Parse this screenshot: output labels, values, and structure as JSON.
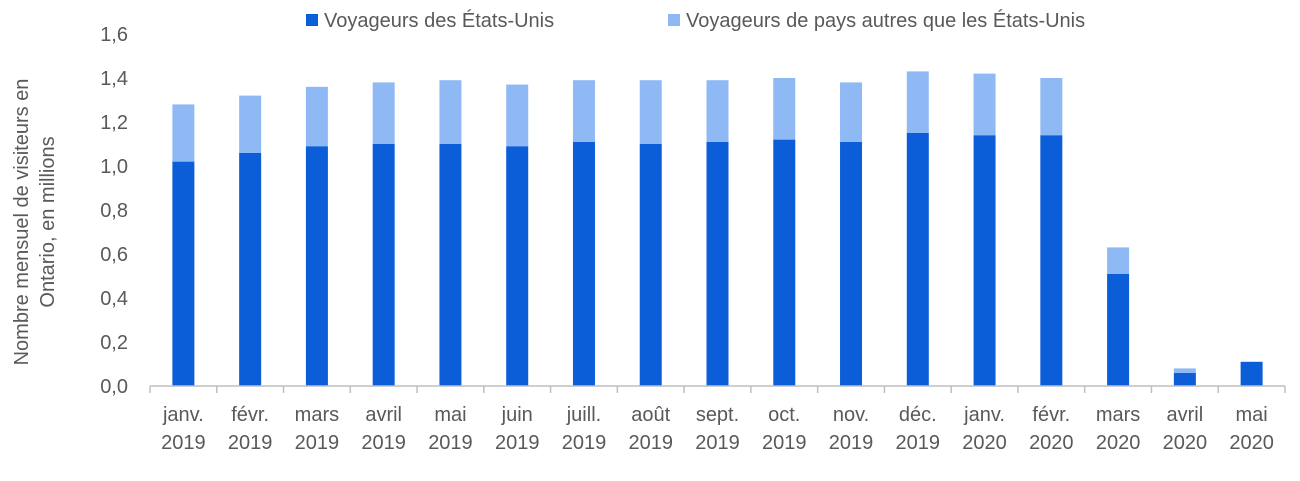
{
  "chart_data": {
    "type": "bar",
    "stacked": true,
    "title": "",
    "ylabel_lines": [
      "Nombre mensuel de visiteurs en",
      "Ontario, en millions"
    ],
    "xlabel": "",
    "ylim": [
      0,
      1.6
    ],
    "yticks": [
      "0,0",
      "0,2",
      "0,4",
      "0,6",
      "0,8",
      "1,0",
      "1,2",
      "1,4",
      "1,6"
    ],
    "grid": false,
    "legend_position": "top",
    "categories": [
      [
        "janv.",
        "2019"
      ],
      [
        "févr.",
        "2019"
      ],
      [
        "mars",
        "2019"
      ],
      [
        "avril",
        "2019"
      ],
      [
        "mai",
        "2019"
      ],
      [
        "juin",
        "2019"
      ],
      [
        "juill.",
        "2019"
      ],
      [
        "août",
        "2019"
      ],
      [
        "sept.",
        "2019"
      ],
      [
        "oct.",
        "2019"
      ],
      [
        "nov.",
        "2019"
      ],
      [
        "déc.",
        "2019"
      ],
      [
        "janv.",
        "2020"
      ],
      [
        "févr.",
        "2020"
      ],
      [
        "mars",
        "2020"
      ],
      [
        "avril",
        "2020"
      ],
      [
        "mai",
        "2020"
      ]
    ],
    "series": [
      {
        "name": "Voyageurs des États-Unis",
        "color": "#0b5ed7",
        "values": [
          1.02,
          1.06,
          1.09,
          1.1,
          1.1,
          1.09,
          1.11,
          1.1,
          1.11,
          1.12,
          1.11,
          1.15,
          1.14,
          1.14,
          0.51,
          0.06,
          0.11
        ]
      },
      {
        "name": "Voyageurs de pays autres que les États-Unis",
        "color": "#8fb9f5",
        "values": [
          0.26,
          0.26,
          0.27,
          0.28,
          0.29,
          0.28,
          0.28,
          0.29,
          0.28,
          0.28,
          0.27,
          0.28,
          0.28,
          0.26,
          0.12,
          0.02,
          0.0
        ]
      }
    ]
  }
}
